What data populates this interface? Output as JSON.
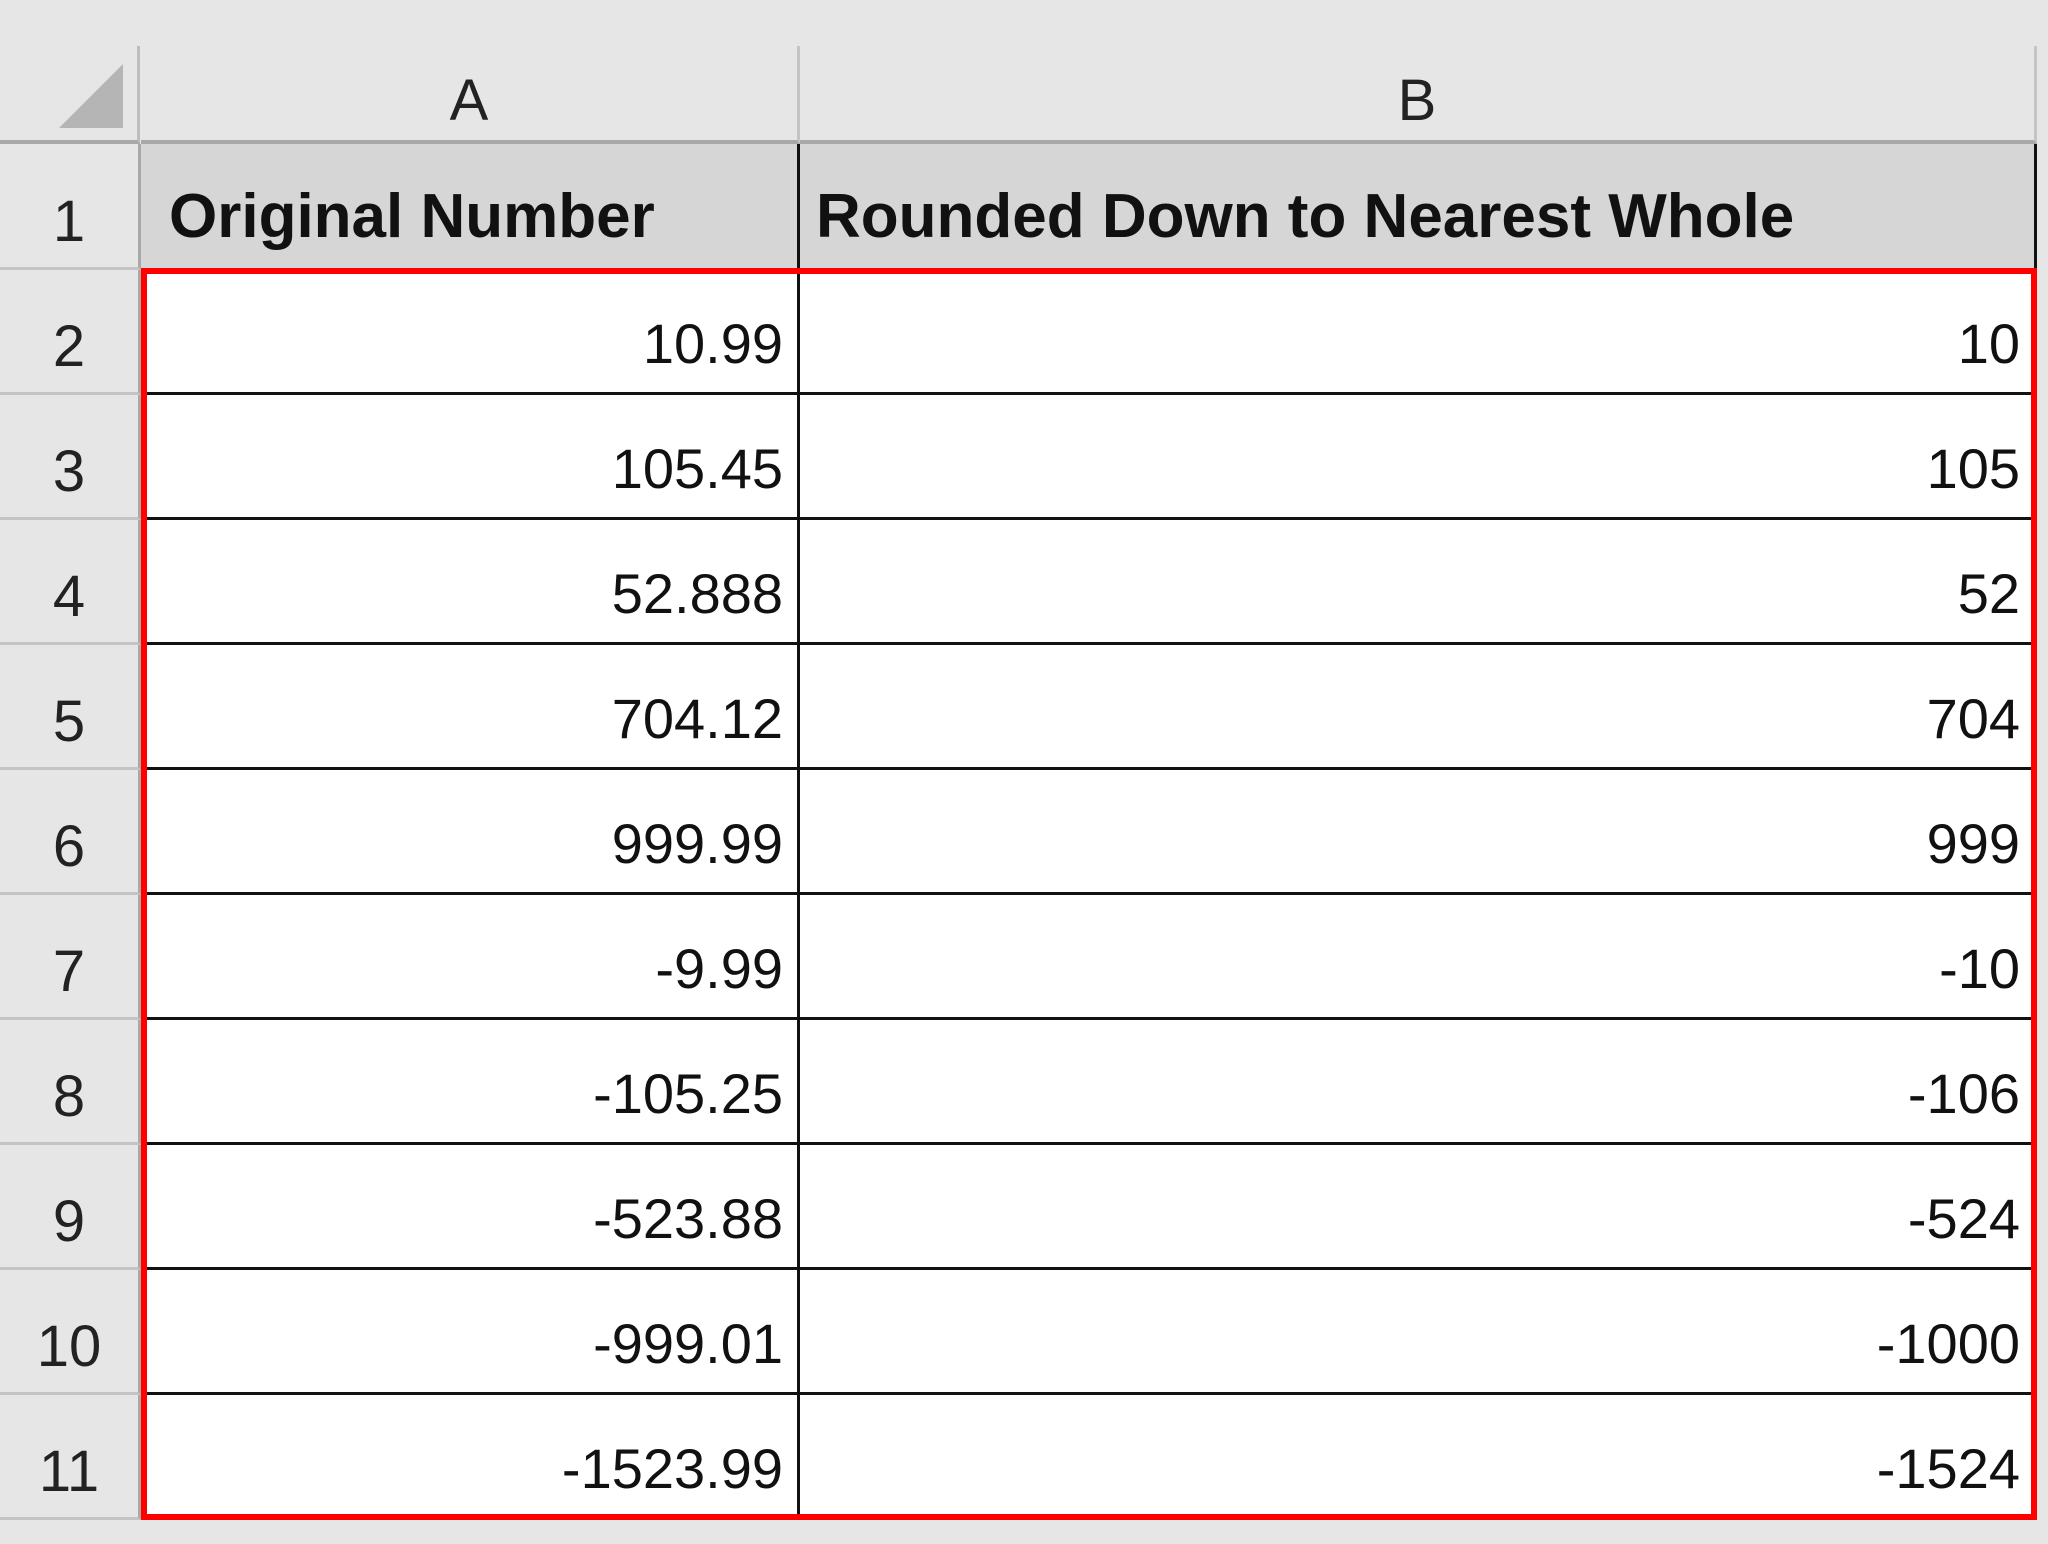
{
  "columns": [
    "A",
    "B"
  ],
  "header": {
    "row": "1",
    "a": "Original Number",
    "b": "Rounded Down to Nearest Whole"
  },
  "rows": [
    {
      "row": "2",
      "a": "10.99",
      "b": "10"
    },
    {
      "row": "3",
      "a": "105.45",
      "b": "105"
    },
    {
      "row": "4",
      "a": "52.888",
      "b": "52"
    },
    {
      "row": "5",
      "a": "704.12",
      "b": "704"
    },
    {
      "row": "6",
      "a": "999.99",
      "b": "999"
    },
    {
      "row": "7",
      "a": "-9.99",
      "b": "-10"
    },
    {
      "row": "8",
      "a": "-105.25",
      "b": "-106"
    },
    {
      "row": "9",
      "a": "-523.88",
      "b": "-524"
    },
    {
      "row": "10",
      "a": "-999.01",
      "b": "-1000"
    },
    {
      "row": "11",
      "a": "-1523.99",
      "b": "-1524"
    }
  ],
  "colors": {
    "selection_border": "#ff0000",
    "header_fill": "#d6d6d6"
  }
}
